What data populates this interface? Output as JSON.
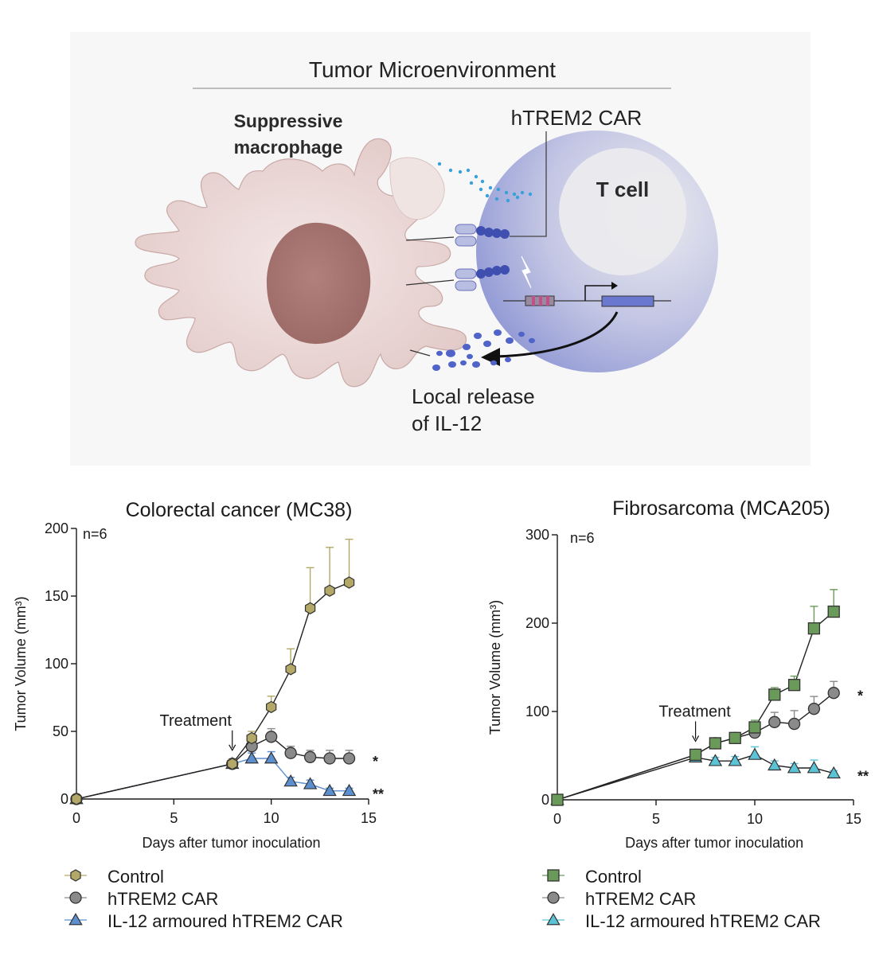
{
  "diagram": {
    "title": "Tumor Microenvironment",
    "macrophage_label_line1": "Suppressive",
    "macrophage_label_line2": "macrophage",
    "car_label": "hTREM2 CAR",
    "tcell_label": "T cell",
    "release_label_line1": "Local release",
    "release_label_line2": "of IL-12",
    "colors": {
      "background": "#f7f7f8",
      "macrophage": "#e9d5d3",
      "nucleus": "#a8706c",
      "tcell": "#b6bce6",
      "tcell_inner": "#e9e9ee",
      "dots_cyan": "#3aa0d8",
      "dots_blue": "#4f63c8"
    }
  },
  "chart_data": [
    {
      "type": "line",
      "title": "Colorectal cancer (MC38)",
      "xlabel": "Days after tumor inoculation",
      "ylabel": "Tumor Volume (mm³)",
      "xlim": [
        0,
        15
      ],
      "ylim": [
        0,
        200
      ],
      "xticks": [
        0,
        5,
        10,
        15
      ],
      "yticks": [
        0,
        50,
        100,
        150,
        200
      ],
      "n_label": "n=6",
      "annotation": {
        "text": "Treatment",
        "x": 8
      },
      "series": [
        {
          "name": "Control",
          "marker": "hexagon",
          "color": "#b3a867",
          "line_color": "#222222",
          "x": [
            0,
            8,
            9,
            10,
            11,
            12,
            13,
            14
          ],
          "y": [
            0,
            26,
            45,
            68,
            96,
            141,
            154,
            160
          ],
          "err": [
            0,
            3,
            5,
            8,
            15,
            30,
            32,
            32
          ]
        },
        {
          "name": "hTREM2 CAR",
          "marker": "circle",
          "color": "#8a8a8a",
          "line_color": "#222222",
          "x": [
            0,
            8,
            9,
            10,
            11,
            12,
            13,
            14
          ],
          "y": [
            0,
            26,
            39,
            46,
            34,
            31,
            30,
            30
          ],
          "err": [
            0,
            3,
            5,
            6,
            5,
            5,
            6,
            6
          ],
          "sig": "*"
        },
        {
          "name": "IL-12 armoured hTREM2 CAR",
          "marker": "triangle",
          "color": "#5b8fd0",
          "line_color": "#5b8fd0",
          "x": [
            0,
            8,
            9,
            10,
            11,
            12,
            13,
            14
          ],
          "y": [
            0,
            26,
            30,
            30,
            13,
            11,
            6,
            6
          ],
          "err": [
            0,
            3,
            4,
            5,
            3,
            3,
            2,
            2
          ],
          "sig": "**"
        }
      ]
    },
    {
      "type": "line",
      "title": "Fibrosarcoma (MCA205)",
      "xlabel": "Days after tumor inoculation",
      "ylabel": "Tumor Volume (mm³)",
      "xlim": [
        0,
        15
      ],
      "ylim": [
        0,
        300
      ],
      "xticks": [
        0,
        5,
        10,
        15
      ],
      "yticks": [
        0,
        100,
        200,
        300
      ],
      "n_label": "n=6",
      "annotation": {
        "text": "Treatment",
        "x": 7
      },
      "series": [
        {
          "name": "Control",
          "marker": "square",
          "color": "#6a9a5a",
          "line_color": "#222222",
          "x": [
            0,
            7,
            8,
            9,
            10,
            11,
            12,
            13,
            14
          ],
          "y": [
            0,
            51,
            64,
            70,
            82,
            119,
            130,
            194,
            213
          ],
          "err": [
            0,
            4,
            5,
            6,
            8,
            8,
            10,
            25,
            25
          ]
        },
        {
          "name": "hTREM2 CAR",
          "marker": "circle",
          "color": "#8a8a8a",
          "line_color": "#222222",
          "x": [
            0,
            7,
            8,
            9,
            10,
            11,
            12,
            13,
            14
          ],
          "y": [
            0,
            51,
            64,
            70,
            76,
            88,
            86,
            103,
            121
          ],
          "err": [
            0,
            4,
            5,
            6,
            8,
            11,
            15,
            14,
            13
          ],
          "sig": "*"
        },
        {
          "name": "IL-12 armoured hTREM2 CAR",
          "marker": "triangle",
          "color": "#5bc3d6",
          "line_color": "#222222",
          "x": [
            0,
            7,
            8,
            9,
            10,
            11,
            12,
            13,
            14
          ],
          "y": [
            0,
            48,
            44,
            44,
            51,
            39,
            36,
            36,
            30
          ],
          "err": [
            0,
            4,
            4,
            5,
            9,
            5,
            5,
            9,
            3
          ],
          "sig": "**"
        }
      ]
    }
  ]
}
